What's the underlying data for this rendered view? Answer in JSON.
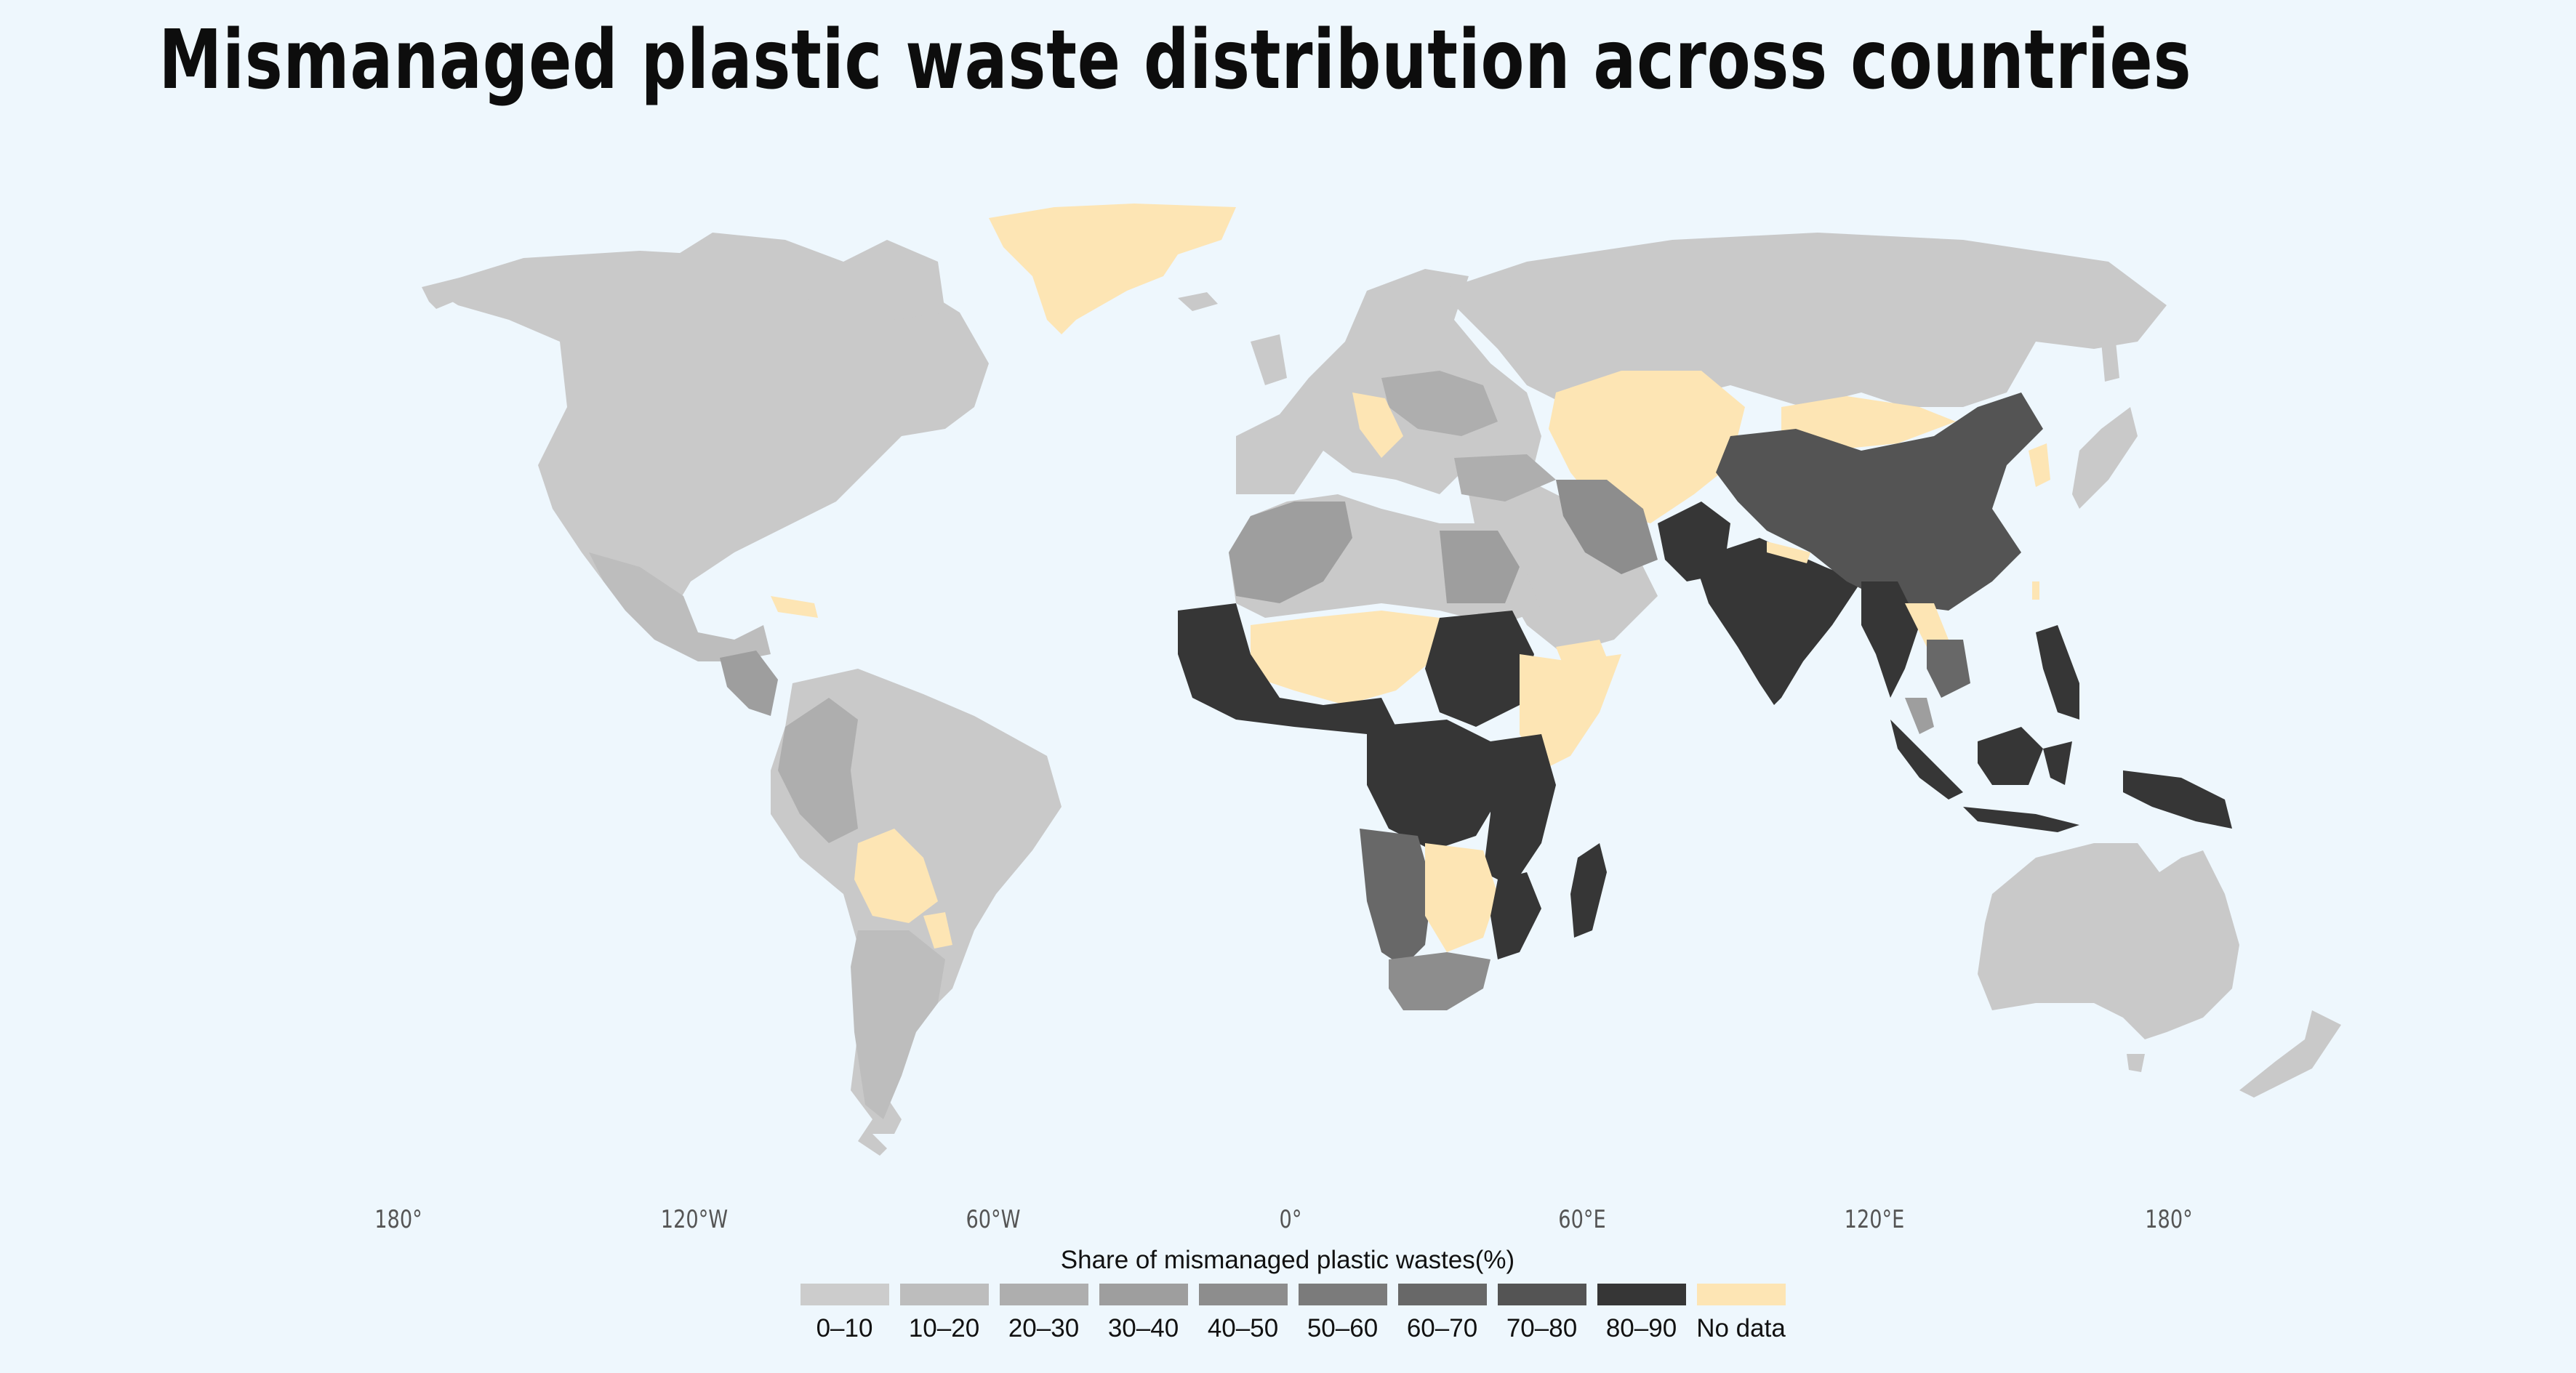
{
  "title": "Mismanaged plastic waste distribution across countries",
  "axis_labels": [
    "180°",
    "120°W",
    "60°W",
    "0°",
    "60°E",
    "120°E",
    "180°"
  ],
  "legend": {
    "title": "Share of mismanaged plastic wastes(%)",
    "items": [
      {
        "label": "0–10",
        "color": "#cccccc"
      },
      {
        "label": "10–20",
        "color": "#bdbdbd"
      },
      {
        "label": "20–30",
        "color": "#aeaeae"
      },
      {
        "label": "30–40",
        "color": "#9e9e9e"
      },
      {
        "label": "40–50",
        "color": "#8d8d8d"
      },
      {
        "label": "50–60",
        "color": "#7b7b7b"
      },
      {
        "label": "60–70",
        "color": "#686868"
      },
      {
        "label": "70–80",
        "color": "#545454"
      },
      {
        "label": "80–90",
        "color": "#363636"
      },
      {
        "label": "No data",
        "color": "#fde5b4"
      }
    ]
  },
  "colors": {
    "background": "#eef7fd",
    "land_default": "#c9c9c9"
  }
}
